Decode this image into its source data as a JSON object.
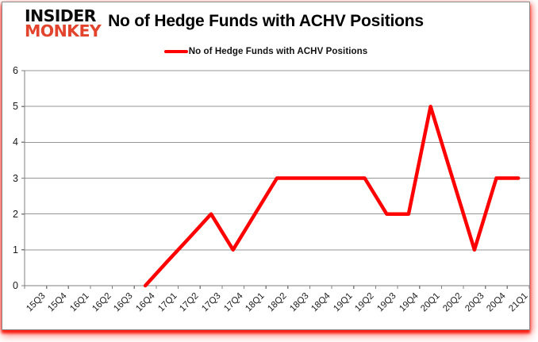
{
  "logo": {
    "line1": "INSIDER",
    "line2": "MONKEY"
  },
  "header": {
    "title": "No of Hedge Funds with ACHV Positions"
  },
  "legend": {
    "label": "No of Hedge Funds with ACHV Positions"
  },
  "colors": {
    "series_line": "#fe0000",
    "gridline": "#969696",
    "axis": "#808080",
    "tick_label": "#1a1a1a",
    "logo_black": "#0b0b0b",
    "logo_red": "#e2442d",
    "frame_glow": "#ff2a1f"
  },
  "chart_data": {
    "type": "line",
    "title": "No of Hedge Funds with ACHV Positions",
    "categories": [
      "15Q3",
      "15Q4",
      "16Q1",
      "16Q2",
      "16Q3",
      "16Q4",
      "17Q1",
      "17Q2",
      "17Q3",
      "17Q4",
      "18Q1",
      "18Q2",
      "18Q3",
      "18Q4",
      "19Q1",
      "19Q2",
      "19Q3",
      "19Q4",
      "20Q1",
      "20Q2",
      "20Q3",
      "20Q4",
      "21Q1"
    ],
    "series": [
      {
        "name": "No of Hedge Funds with ACHV Positions",
        "values": [
          null,
          null,
          null,
          null,
          null,
          0,
          0.67,
          1.33,
          2,
          1,
          2,
          3,
          3,
          3,
          3,
          3,
          2,
          2,
          5,
          3,
          1,
          3,
          3
        ]
      }
    ],
    "xlabel": "",
    "ylabel": "",
    "ylim": [
      0,
      6
    ],
    "ytick_step": 1,
    "yticks": [
      0,
      1,
      2,
      3,
      4,
      5,
      6
    ],
    "grid": "horizontal",
    "legend_position": "top-center",
    "x_label_rotation": -45,
    "line_width": 4.5
  }
}
